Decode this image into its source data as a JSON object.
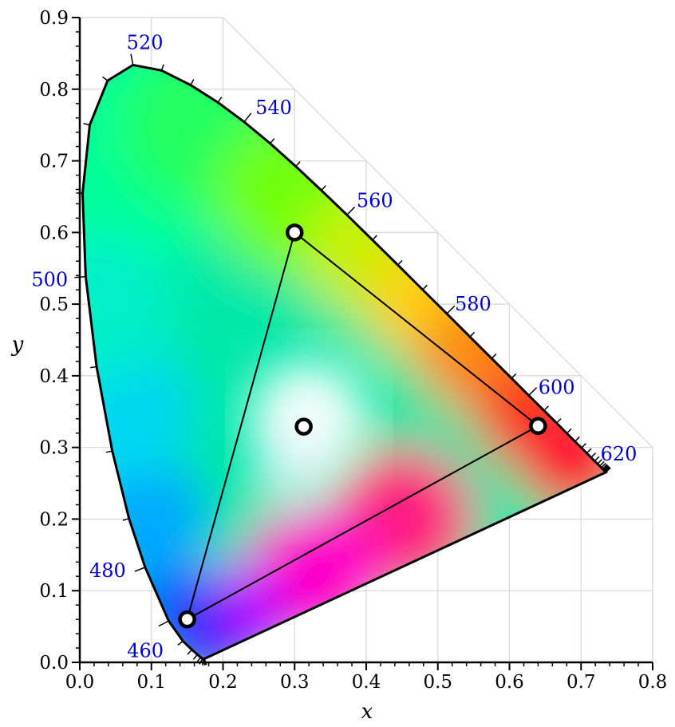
{
  "chart_data": {
    "type": "scatter",
    "xlabel": "x",
    "ylabel": "y",
    "xlim": [
      0.0,
      0.8
    ],
    "ylim": [
      0.0,
      0.9
    ],
    "x_ticks": [
      "0.0",
      "0.1",
      "0.2",
      "0.3",
      "0.4",
      "0.5",
      "0.6",
      "0.7",
      "0.8"
    ],
    "y_ticks": [
      "0.0",
      "0.1",
      "0.2",
      "0.3",
      "0.4",
      "0.5",
      "0.6",
      "0.7",
      "0.8",
      "0.9"
    ],
    "grid": true,
    "spectral_locus": [
      [
        0.1741,
        0.005
      ],
      [
        0.1738,
        0.0049
      ],
      [
        0.1733,
        0.0048
      ],
      [
        0.1726,
        0.0048
      ],
      [
        0.1714,
        0.0051
      ],
      [
        0.1689,
        0.0069
      ],
      [
        0.1644,
        0.0109
      ],
      [
        0.1566,
        0.0177
      ],
      [
        0.144,
        0.0297
      ],
      [
        0.1241,
        0.0578
      ],
      [
        0.0913,
        0.1327
      ],
      [
        0.0687,
        0.2007
      ],
      [
        0.0454,
        0.295
      ],
      [
        0.0235,
        0.4127
      ],
      [
        0.0082,
        0.5384
      ],
      [
        0.0039,
        0.6548
      ],
      [
        0.0139,
        0.7502
      ],
      [
        0.0389,
        0.812
      ],
      [
        0.0743,
        0.8338
      ],
      [
        0.1142,
        0.8262
      ],
      [
        0.1547,
        0.8059
      ],
      [
        0.1929,
        0.7816
      ],
      [
        0.2296,
        0.7543
      ],
      [
        0.2658,
        0.7243
      ],
      [
        0.3016,
        0.6923
      ],
      [
        0.3373,
        0.6589
      ],
      [
        0.3731,
        0.6245
      ],
      [
        0.4087,
        0.5896
      ],
      [
        0.4441,
        0.5547
      ],
      [
        0.4788,
        0.5202
      ],
      [
        0.5125,
        0.4866
      ],
      [
        0.5448,
        0.4544
      ],
      [
        0.5752,
        0.4242
      ],
      [
        0.6029,
        0.3965
      ],
      [
        0.627,
        0.3725
      ],
      [
        0.6482,
        0.3514
      ],
      [
        0.6658,
        0.334
      ],
      [
        0.6801,
        0.3197
      ],
      [
        0.6915,
        0.3083
      ],
      [
        0.7006,
        0.2993
      ],
      [
        0.7079,
        0.292
      ],
      [
        0.714,
        0.2859
      ],
      [
        0.719,
        0.2809
      ],
      [
        0.723,
        0.277
      ],
      [
        0.726,
        0.274
      ],
      [
        0.7283,
        0.2717
      ],
      [
        0.73,
        0.27
      ],
      [
        0.7311,
        0.2689
      ],
      [
        0.732,
        0.268
      ],
      [
        0.7327,
        0.2673
      ],
      [
        0.7334,
        0.2666
      ],
      [
        0.734,
        0.266
      ],
      [
        0.7344,
        0.2656
      ],
      [
        0.7346,
        0.2654
      ],
      [
        0.7347,
        0.2653
      ]
    ],
    "wavelength_labels": [
      {
        "label": "460",
        "x": 0.144,
        "y": 0.0297
      },
      {
        "label": "480",
        "x": 0.0913,
        "y": 0.1327
      },
      {
        "label": "500",
        "x": 0.0082,
        "y": 0.5384
      },
      {
        "label": "520",
        "x": 0.0743,
        "y": 0.8338
      },
      {
        "label": "540",
        "x": 0.2296,
        "y": 0.7543
      },
      {
        "label": "560",
        "x": 0.3731,
        "y": 0.6245
      },
      {
        "label": "580",
        "x": 0.5125,
        "y": 0.4866
      },
      {
        "label": "600",
        "x": 0.627,
        "y": 0.3725
      },
      {
        "label": "620",
        "x": 0.6915,
        "y": 0.3083
      }
    ],
    "gamut_triangle": [
      {
        "x": 0.64,
        "y": 0.33
      },
      {
        "x": 0.3,
        "y": 0.6
      },
      {
        "x": 0.15,
        "y": 0.06
      }
    ],
    "white_point": {
      "x": 0.3127,
      "y": 0.329
    },
    "colors": {
      "wavelength_label": "#0000cc",
      "grid": "#d6d6d6",
      "axis": "#000000"
    }
  }
}
